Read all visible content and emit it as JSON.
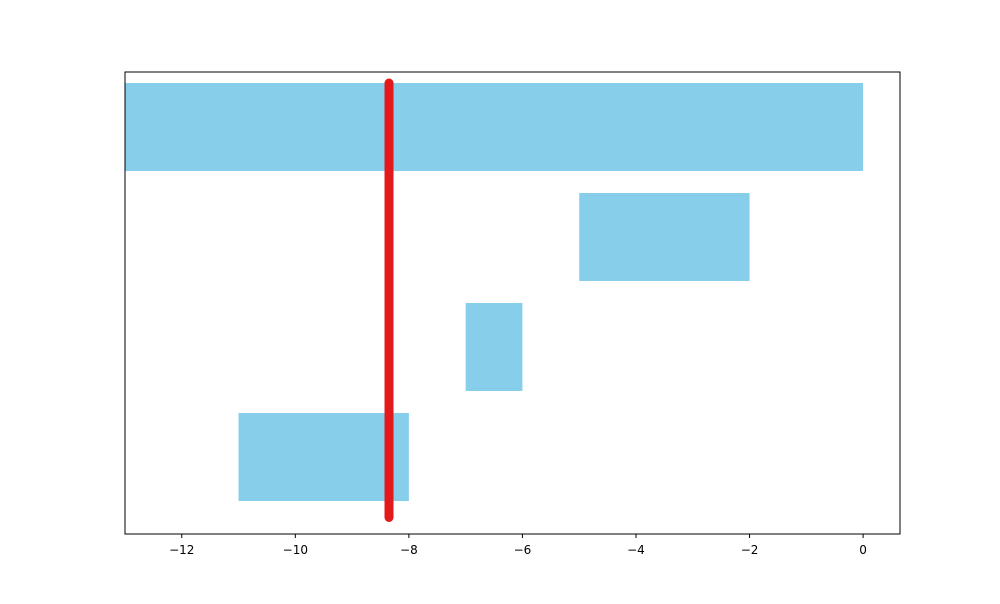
{
  "chart_data": {
    "type": "bar",
    "orientation": "horizontal",
    "title": "",
    "xlabel": "",
    "ylabel": "",
    "xlim": [
      -13,
      0.65
    ],
    "ylim": [
      -0.7,
      3.5
    ],
    "grid": false,
    "y_axis_labels_visible": false,
    "bars": [
      {
        "start": -13,
        "end": 0,
        "y": 3
      },
      {
        "start": -5,
        "end": -2,
        "y": 2
      },
      {
        "start": -7,
        "end": -6,
        "y": 1
      },
      {
        "start": -11,
        "end": -8,
        "y": 0
      }
    ],
    "bar_height": 0.8,
    "x_ticks": [
      -12,
      -10,
      -8,
      -6,
      -4,
      -2,
      0
    ],
    "x_tick_labels": [
      "−12",
      "−10",
      "−8",
      "−6",
      "−4",
      "−2",
      "0"
    ],
    "marker_line": {
      "x": -8.35,
      "y_from": -0.55,
      "y_to": 3.4,
      "color": "#e31a1c"
    },
    "colors": {
      "bar": "#87ceeb",
      "marker": "#e31a1c",
      "axes": "#000000"
    }
  }
}
